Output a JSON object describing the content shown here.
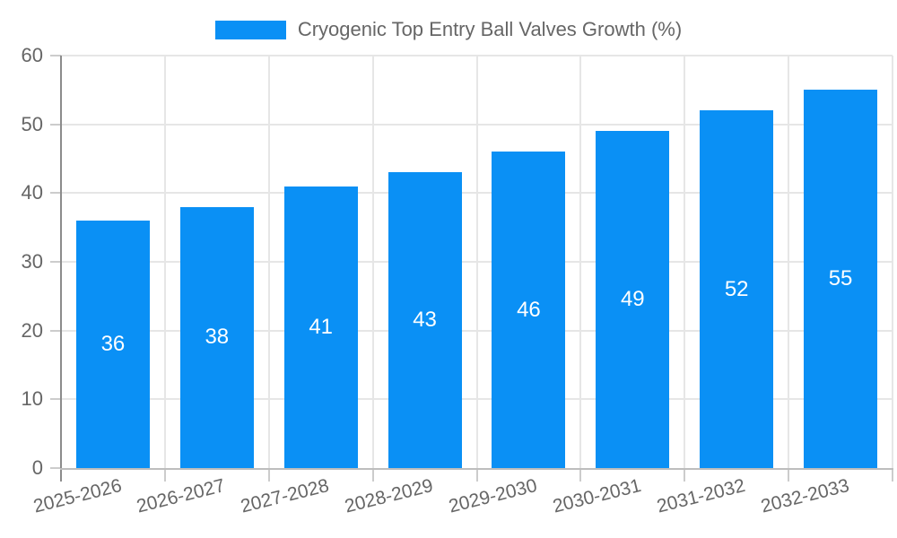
{
  "legend": {
    "label": "Cryogenic Top Entry Ball Valves Growth (%)"
  },
  "chart_data": {
    "type": "bar",
    "title": "Cryogenic Top Entry Ball Valves Growth (%)",
    "categories": [
      "2025-2026",
      "2026-2027",
      "2027-2028",
      "2028-2029",
      "2029-2030",
      "2030-2031",
      "2031-2032",
      "2032-2033"
    ],
    "values": [
      36,
      38,
      41,
      43,
      46,
      49,
      52,
      55
    ],
    "xlabel": "",
    "ylabel": "",
    "ylim": [
      0,
      60
    ],
    "yticks": [
      0,
      10,
      20,
      30,
      40,
      50,
      60
    ],
    "grid": true,
    "legend_position": "top-center",
    "value_labels": "inside-center"
  },
  "colors": {
    "bar": "#0a90f5",
    "grid": "#e6e6e6",
    "y_axis_line": "#8c8c8c",
    "x_axis_line": "#bdbdbd",
    "tick_mark": "#cccccc",
    "tick_text": "#666666",
    "value_label_text": "#ffffff",
    "background": "#ffffff"
  }
}
